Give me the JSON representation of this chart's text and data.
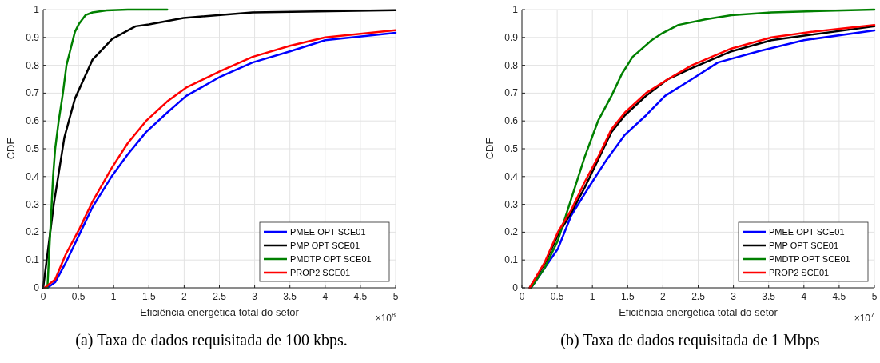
{
  "chart_data": [
    {
      "type": "line",
      "xlabel": "Eficiência energética total do setor",
      "ylabel": "CDF",
      "annotations": [
        "×10$^{8}$",
        "(a) Taxa de dados requisitada de 100 kbps."
      ],
      "xlim": [
        0,
        5
      ],
      "ylim": [
        0,
        1
      ],
      "xticks": [
        0,
        0.5,
        1,
        1.5,
        2,
        2.5,
        3,
        3.5,
        4,
        4.5,
        5
      ],
      "yticks": [
        0,
        0.1,
        0.2,
        0.3,
        0.4,
        0.5,
        0.6,
        0.7,
        0.8,
        0.9,
        1
      ],
      "grid": true,
      "legend": "bottom right",
      "line_style": "solid",
      "series": [
        {
          "name": "PMEE OPT SCE01",
          "color": "#0000ff",
          "x": [
            0.06,
            0.17,
            0.32,
            0.51,
            0.7,
            0.97,
            1.2,
            1.46,
            1.76,
            2.03,
            2.52,
            2.97,
            3.5,
            4,
            5
          ],
          "values": [
            0,
            0.02,
            0.09,
            0.19,
            0.29,
            0.4,
            0.48,
            0.56,
            0.63,
            0.69,
            0.76,
            0.81,
            0.85,
            0.89,
            0.917
          ]
        },
        {
          "name": "PMP OPT SCE01",
          "color": "#000000",
          "x": [
            0,
            0.15,
            0.3,
            0.45,
            0.7,
            0.98,
            1.31,
            1.5,
            1.99,
            2.97,
            5
          ],
          "values": [
            0,
            0.3,
            0.54,
            0.68,
            0.82,
            0.895,
            0.94,
            0.947,
            0.97,
            0.99,
            0.998
          ]
        },
        {
          "name": "PMDTP OPT SCE01",
          "color": "#008000",
          "x": [
            0.06,
            0.1,
            0.14,
            0.17,
            0.22,
            0.28,
            0.33,
            0.38,
            0.45,
            0.51,
            0.6,
            0.7,
            0.9,
            1.2,
            1.76
          ],
          "values": [
            0,
            0.2,
            0.4,
            0.5,
            0.6,
            0.7,
            0.8,
            0.85,
            0.92,
            0.95,
            0.98,
            0.99,
            0.997,
            1,
            1
          ]
        },
        {
          "name": "PROP2 SCE01",
          "color": "#ff0000",
          "x": [
            0.02,
            0.17,
            0.32,
            0.51,
            0.7,
            0.97,
            1.2,
            1.46,
            1.76,
            2.03,
            2.52,
            2.97,
            3.5,
            4,
            5
          ],
          "values": [
            0,
            0.03,
            0.12,
            0.21,
            0.31,
            0.43,
            0.52,
            0.6,
            0.67,
            0.72,
            0.78,
            0.83,
            0.87,
            0.9,
            0.926
          ]
        }
      ]
    },
    {
      "type": "line",
      "xlabel": "Eficiência energética total do setor",
      "ylabel": "CDF",
      "annotations": [
        "×10$^{7}$",
        "(b) Taxa de dados requisitada de 1 Mbps"
      ],
      "xlim": [
        0,
        5
      ],
      "ylim": [
        0,
        1
      ],
      "xticks": [
        0,
        0.5,
        1,
        1.5,
        2,
        2.5,
        3,
        3.5,
        4,
        4.5,
        5
      ],
      "yticks": [
        0,
        0.1,
        0.2,
        0.3,
        0.4,
        0.5,
        0.6,
        0.7,
        0.8,
        0.9,
        1
      ],
      "grid": true,
      "legend": "bottom right",
      "line_style": "solid",
      "series": [
        {
          "name": "PMEE OPT SCE01",
          "color": "#0000ff",
          "x": [
            0.13,
            0.32,
            0.51,
            0.7,
            0.97,
            1.2,
            1.46,
            1.76,
            2.03,
            2.41,
            2.78,
            3.35,
            4,
            5
          ],
          "values": [
            0,
            0.07,
            0.14,
            0.26,
            0.37,
            0.46,
            0.55,
            0.62,
            0.69,
            0.75,
            0.81,
            0.85,
            0.89,
            0.925
          ]
        },
        {
          "name": "PMP OPT SCE01",
          "color": "#000000",
          "x": [
            0.11,
            0.32,
            0.51,
            0.7,
            0.89,
            1.08,
            1.27,
            1.46,
            1.76,
            2.07,
            2.41,
            2.97,
            3.54,
            4.11,
            5
          ],
          "values": [
            0,
            0.085,
            0.19,
            0.27,
            0.36,
            0.46,
            0.56,
            0.62,
            0.69,
            0.75,
            0.79,
            0.85,
            0.89,
            0.91,
            0.94
          ]
        },
        {
          "name": "PMDTP OPT SCE01",
          "color": "#008000",
          "x": [
            0.13,
            0.32,
            0.51,
            0.7,
            0.89,
            1.08,
            1.27,
            1.42,
            1.57,
            1.84,
            1.99,
            2.22,
            2.6,
            2.97,
            3.54,
            5
          ],
          "values": [
            0,
            0.07,
            0.17,
            0.32,
            0.47,
            0.6,
            0.69,
            0.77,
            0.83,
            0.89,
            0.915,
            0.945,
            0.965,
            0.98,
            0.99,
            1
          ]
        },
        {
          "name": "PROP2 SCE01",
          "color": "#ff0000",
          "x": [
            0.11,
            0.32,
            0.51,
            0.7,
            0.89,
            1.08,
            1.27,
            1.46,
            1.76,
            2.07,
            2.41,
            2.97,
            3.54,
            4.11,
            5
          ],
          "values": [
            0,
            0.09,
            0.2,
            0.28,
            0.38,
            0.47,
            0.57,
            0.63,
            0.7,
            0.75,
            0.8,
            0.86,
            0.9,
            0.92,
            0.945
          ]
        }
      ]
    }
  ]
}
